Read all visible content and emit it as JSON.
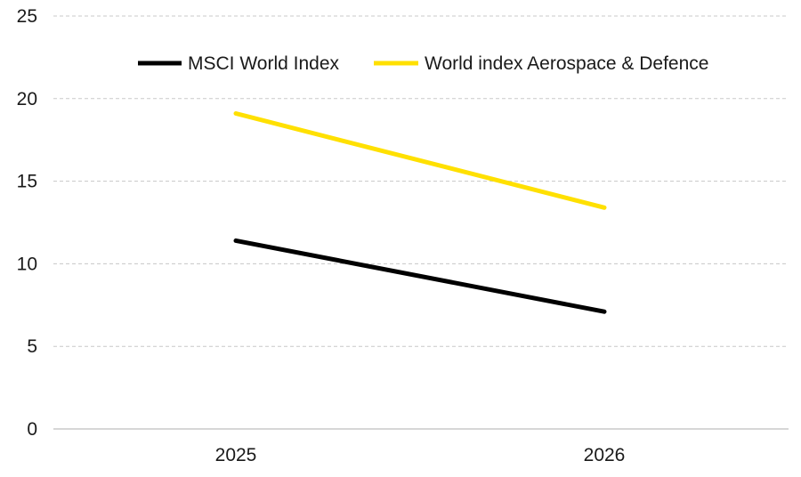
{
  "chart_data": {
    "type": "line",
    "categories": [
      "2025",
      "2026"
    ],
    "series": [
      {
        "name": "MSCI World Index",
        "values": [
          11.4,
          7.1
        ],
        "color": "#000000"
      },
      {
        "name": "World index Aerospace & Defence",
        "values": [
          19.1,
          13.4
        ],
        "color": "#ffe000"
      }
    ],
    "ylim": [
      0,
      25
    ],
    "yticks": [
      0,
      5,
      10,
      15,
      20,
      25
    ],
    "grid": true,
    "legend_position": "top-right",
    "title": "",
    "xlabel": "",
    "ylabel": ""
  }
}
